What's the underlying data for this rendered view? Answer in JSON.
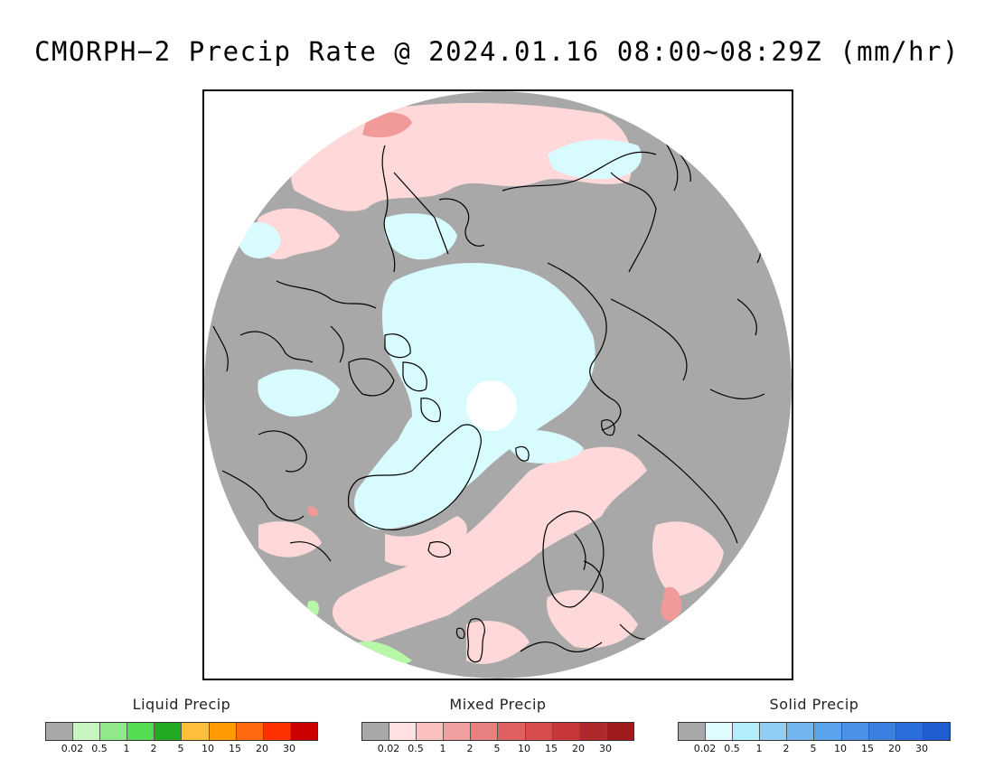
{
  "title": "CMORPH−2 Precip Rate @ 2024.01.16 08:00~08:29Z (mm/hr)",
  "legends": [
    {
      "title": "Liquid Precip",
      "colors": [
        "#a8a8a8",
        "#c8f5c0",
        "#8fe88a",
        "#52dd52",
        "#22aa22",
        "#ffbf3a",
        "#ff9a00",
        "#ff6a10",
        "#ff3000",
        "#cc0000"
      ],
      "ticks": [
        "0.02",
        "0.5",
        "1",
        "2",
        "5",
        "10",
        "15",
        "20",
        "30"
      ]
    },
    {
      "title": "Mixed Precip",
      "colors": [
        "#a8a8a8",
        "#ffe0e0",
        "#fbc0c0",
        "#f0a0a0",
        "#e88080",
        "#e06060",
        "#d84c4c",
        "#c83838",
        "#b02828",
        "#a01c1c"
      ],
      "ticks": [
        "0.02",
        "0.5",
        "1",
        "2",
        "5",
        "10",
        "15",
        "20",
        "30"
      ]
    },
    {
      "title": "Solid Precip",
      "colors": [
        "#a8a8a8",
        "#e0fcff",
        "#b4eefa",
        "#90cff5",
        "#72b6f0",
        "#5aa4ec",
        "#4a92e8",
        "#3a80e2",
        "#2a6edc",
        "#1e5ed0"
      ],
      "ticks": [
        "0.02",
        "0.5",
        "1",
        "2",
        "5",
        "10",
        "15",
        "20",
        "30"
      ]
    }
  ],
  "map": {
    "projection": "north polar stereographic",
    "colors": {
      "no_precip": "#a8a8a8",
      "mixed_light": "#ffd9d9",
      "mixed_moderate": "#f09a9a",
      "snow_light": "#d8fbff",
      "liquid_light": "#b7f7a8",
      "pole_gap": "#ffffff",
      "coastline": "#000000"
    }
  }
}
